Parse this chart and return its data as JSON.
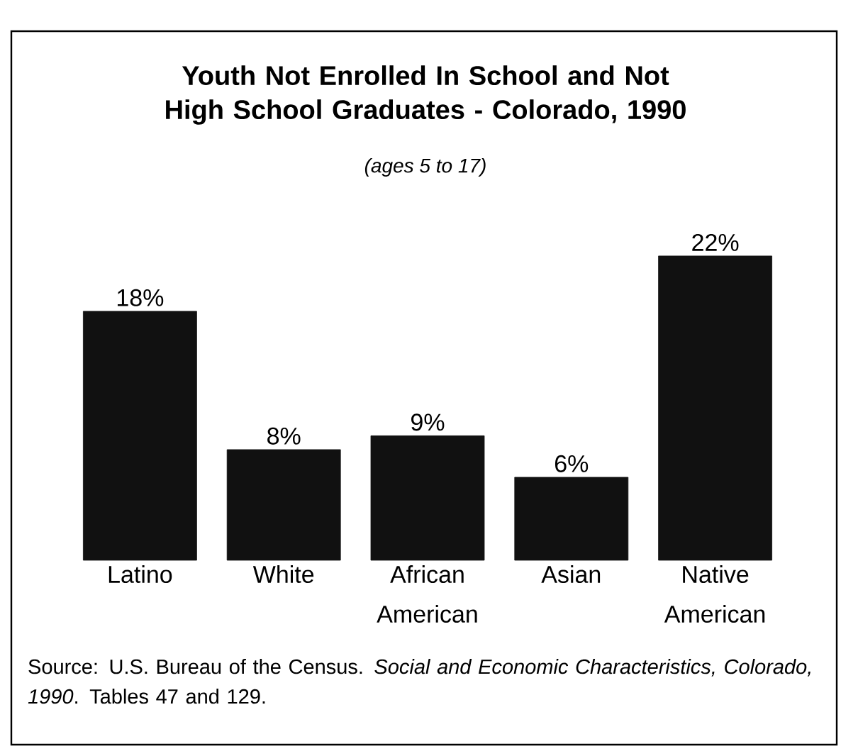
{
  "chart_data": {
    "type": "bar",
    "title": "Youth Not Enrolled In School and Not High School Graduates - Colorado, 1990",
    "subtitle": "(ages 5 to 17)",
    "categories": [
      "Latino",
      "White",
      "African American",
      "Asian",
      "Native American"
    ],
    "values": [
      18,
      8,
      9,
      6,
      22
    ],
    "value_labels": [
      "18%",
      "8%",
      "9%",
      "6%",
      "22%"
    ],
    "color": "#111111",
    "annotations": [
      "Source: U.S. Bureau of the Census. *Social and Economic Characteristics, Colorado, 1990*. Tables 47 and 129."
    ]
  }
}
